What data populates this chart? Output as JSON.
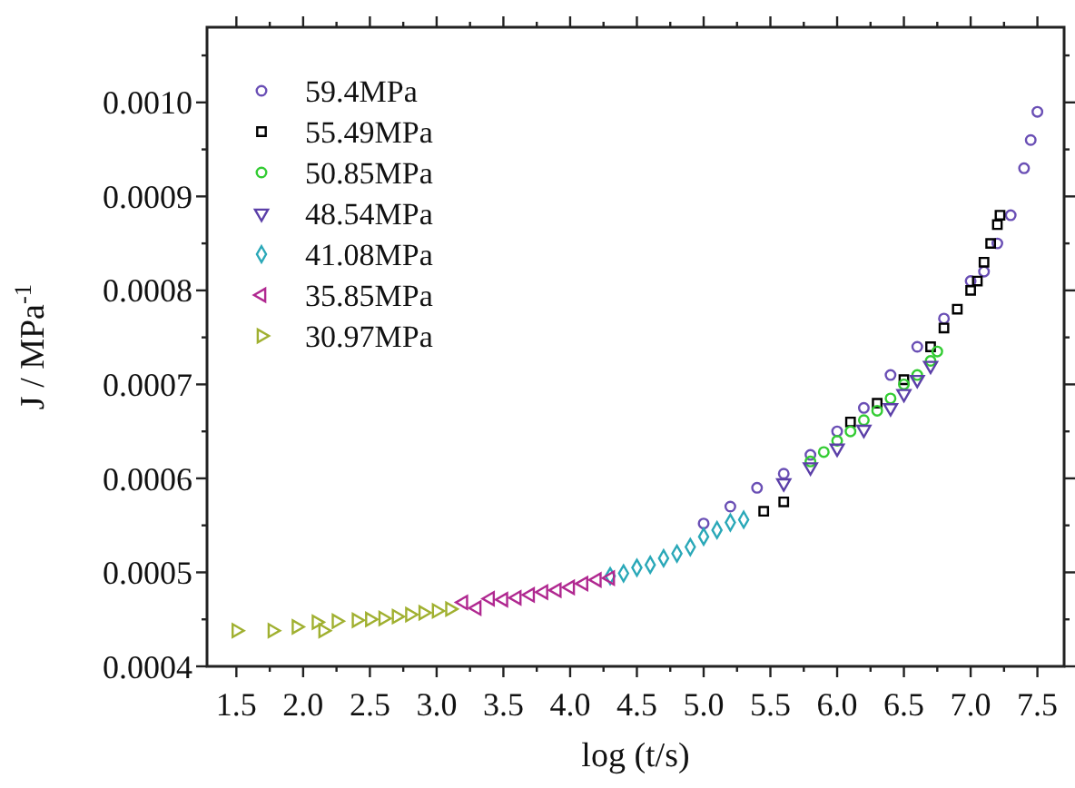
{
  "chart_data": {
    "type": "scatter",
    "xlabel": "log (t/s)",
    "ylabel": "J / MPa$^{-1}$",
    "legend": "top left",
    "grid": false,
    "xlim": [
      1.28,
      7.7
    ],
    "ylim": [
      0.0004,
      0.00108
    ],
    "xticks": [
      {
        "value": 1.5,
        "label": "1.5"
      },
      {
        "value": 1.75,
        "label": null
      },
      {
        "value": 2,
        "label": "2.0"
      },
      {
        "value": 2.25,
        "label": null
      },
      {
        "value": 2.5,
        "label": "2.5"
      },
      {
        "value": 2.75,
        "label": null
      },
      {
        "value": 3,
        "label": "3.0"
      },
      {
        "value": 3.25,
        "label": null
      },
      {
        "value": 3.5,
        "label": "3.5"
      },
      {
        "value": 3.75,
        "label": null
      },
      {
        "value": 4,
        "label": "4.0"
      },
      {
        "value": 4.25,
        "label": null
      },
      {
        "value": 4.5,
        "label": "4.5"
      },
      {
        "value": 4.75,
        "label": null
      },
      {
        "value": 5,
        "label": "5.0"
      },
      {
        "value": 5.25,
        "label": null
      },
      {
        "value": 5.5,
        "label": "5.5"
      },
      {
        "value": 5.75,
        "label": null
      },
      {
        "value": 6,
        "label": "6.0"
      },
      {
        "value": 6.25,
        "label": null
      },
      {
        "value": 6.5,
        "label": "6.5"
      },
      {
        "value": 6.75,
        "label": null
      },
      {
        "value": 7,
        "label": "7.0"
      },
      {
        "value": 7.25,
        "label": null
      },
      {
        "value": 7.5,
        "label": "7.5"
      }
    ],
    "yticks": [
      {
        "value": 0.0004,
        "label": "0.0004"
      },
      {
        "value": 0.00045,
        "label": null
      },
      {
        "value": 0.0005,
        "label": "0.0005"
      },
      {
        "value": 0.00055,
        "label": null
      },
      {
        "value": 0.0006,
        "label": "0.0006"
      },
      {
        "value": 0.00065,
        "label": null
      },
      {
        "value": 0.0007,
        "label": "0.0007"
      },
      {
        "value": 0.00075,
        "label": null
      },
      {
        "value": 0.0008,
        "label": "0.0008"
      },
      {
        "value": 0.00085,
        "label": null
      },
      {
        "value": 0.0009,
        "label": "0.0009"
      },
      {
        "value": 0.00095,
        "label": null
      },
      {
        "value": 0.001,
        "label": "0.0010"
      },
      {
        "value": 0.00105,
        "label": null
      }
    ],
    "series": [
      {
        "name": "59.4MPa",
        "color": "#6a4fb5",
        "marker": "circle",
        "x": [
          5.0,
          5.2,
          5.4,
          5.6,
          5.8,
          6.0,
          6.2,
          6.4,
          6.6,
          6.8,
          7.0,
          7.1,
          7.2,
          7.3,
          7.4,
          7.45,
          7.5
        ],
        "values": [
          0.000552,
          0.00057,
          0.00059,
          0.000605,
          0.000625,
          0.00065,
          0.000675,
          0.00071,
          0.00074,
          0.00077,
          0.00081,
          0.00082,
          0.00085,
          0.00088,
          0.00093,
          0.00096,
          0.00099
        ]
      },
      {
        "name": "55.49MPa",
        "color": "#000000",
        "marker": "square",
        "x": [
          5.45,
          5.6,
          6.1,
          6.3,
          6.5,
          6.7,
          6.8,
          6.9,
          7.0,
          7.05,
          7.1,
          7.15,
          7.2,
          7.22
        ],
        "values": [
          0.000565,
          0.000575,
          0.00066,
          0.00068,
          0.000705,
          0.00074,
          0.00076,
          0.00078,
          0.0008,
          0.00081,
          0.00083,
          0.00085,
          0.00087,
          0.00088
        ]
      },
      {
        "name": "50.85MPa",
        "color": "#33cc33",
        "marker": "circle",
        "x": [
          5.8,
          5.9,
          6.0,
          6.1,
          6.2,
          6.3,
          6.4,
          6.5,
          6.6,
          6.7,
          6.75
        ],
        "values": [
          0.000618,
          0.000628,
          0.00064,
          0.00065,
          0.000662,
          0.000672,
          0.000685,
          0.0007,
          0.00071,
          0.000725,
          0.000735
        ]
      },
      {
        "name": "48.54MPa",
        "color": "#5b3fa8",
        "marker": "triangle-down",
        "x": [
          5.6,
          5.8,
          6.0,
          6.2,
          6.4,
          6.5,
          6.6,
          6.7
        ],
        "values": [
          0.000595,
          0.000612,
          0.000632,
          0.000652,
          0.000675,
          0.00069,
          0.000705,
          0.00072
        ]
      },
      {
        "name": "41.08MPa",
        "color": "#2aa8b8",
        "marker": "diamond",
        "x": [
          4.3,
          4.4,
          4.5,
          4.6,
          4.7,
          4.8,
          4.9,
          5.0,
          5.1,
          5.2,
          5.3
        ],
        "values": [
          0.000496,
          0.000499,
          0.000505,
          0.000508,
          0.000515,
          0.00052,
          0.000527,
          0.000538,
          0.000545,
          0.000553,
          0.000556
        ]
      },
      {
        "name": "35.85MPa",
        "color": "#b02890",
        "marker": "triangle-left",
        "x": [
          3.2,
          3.3,
          3.4,
          3.5,
          3.6,
          3.7,
          3.8,
          3.9,
          4.0,
          4.1,
          4.2,
          4.3
        ],
        "values": [
          0.000468,
          0.000462,
          0.000472,
          0.000471,
          0.000473,
          0.000476,
          0.000479,
          0.000481,
          0.000484,
          0.000488,
          0.000492,
          0.000494
        ]
      },
      {
        "name": "30.97MPa",
        "color": "#a0b030",
        "marker": "triangle-right",
        "x": [
          1.5,
          1.77,
          1.95,
          2.1,
          2.15,
          2.25,
          2.4,
          2.5,
          2.6,
          2.7,
          2.8,
          2.9,
          3.0,
          3.1
        ],
        "values": [
          0.000438,
          0.000438,
          0.000442,
          0.000447,
          0.000438,
          0.000448,
          0.000449,
          0.00045,
          0.000451,
          0.000453,
          0.000455,
          0.000457,
          0.000459,
          0.000461
        ]
      }
    ]
  }
}
